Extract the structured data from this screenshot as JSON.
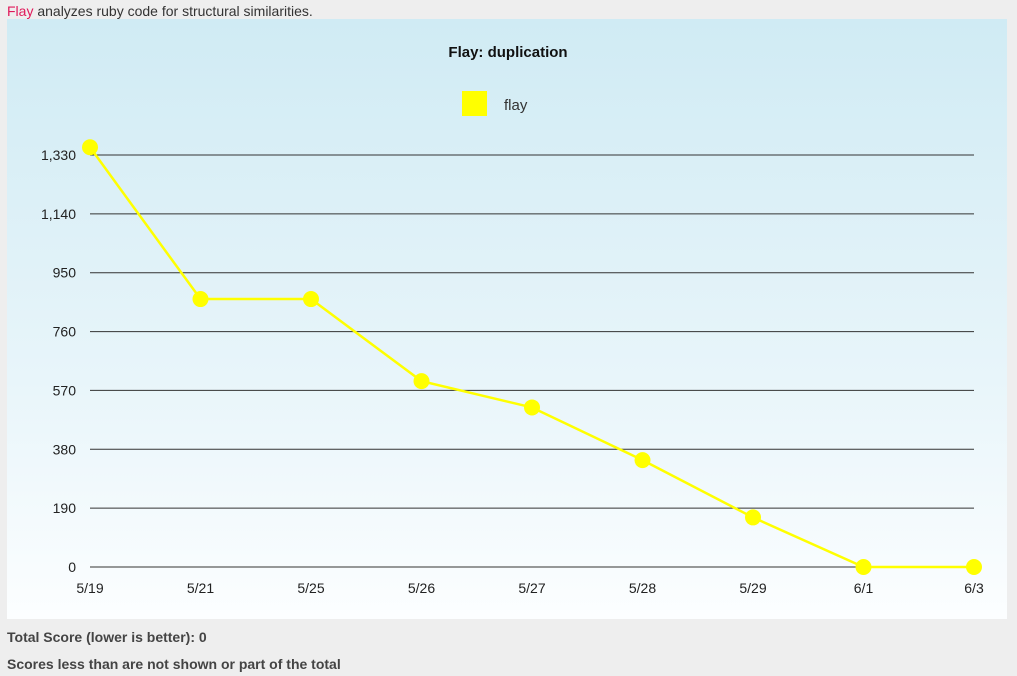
{
  "intro": {
    "link_text": "Flay",
    "text": " analyzes ruby code for structural similarities."
  },
  "chart_data": {
    "type": "line",
    "title": "Flay: duplication",
    "xlabel": "",
    "ylabel": "",
    "categories": [
      "5/19",
      "5/21",
      "5/25",
      "5/26",
      "5/27",
      "5/28",
      "5/29",
      "6/1",
      "6/3"
    ],
    "series": [
      {
        "name": "flay",
        "color": "#ffff00",
        "values": [
          1355,
          865,
          865,
          600,
          515,
          345,
          160,
          0,
          0
        ]
      }
    ],
    "yticks": [
      0,
      190,
      380,
      570,
      760,
      950,
      1140,
      1330
    ],
    "ytick_labels": [
      "0",
      "190",
      "380",
      "570",
      "760",
      "950",
      "1,140",
      "1,330"
    ],
    "ylim": [
      0,
      1330
    ],
    "grid": true,
    "legend_position": "top-center"
  },
  "footer": {
    "total_score": "Total Score (lower is better): 0",
    "scores_note": "Scores less than are not shown or part of the total"
  }
}
